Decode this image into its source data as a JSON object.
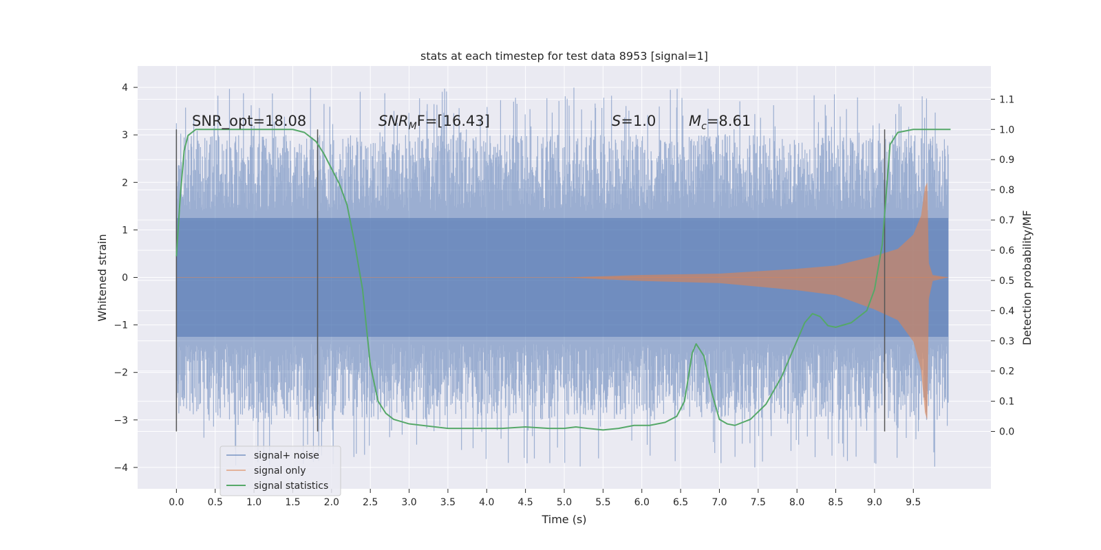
{
  "chart_data": {
    "type": "line",
    "title": "stats at each timestep for test data 8953 [signal=1]",
    "xlabel": "Time (s)",
    "ylabel": "Whitened strain",
    "y2label": "Detection probability/MF",
    "xlim": [
      -0.5,
      10.5
    ],
    "ylim": [
      -4.45,
      4.45
    ],
    "y2lim": [
      -0.19,
      1.21
    ],
    "x_ticks": [
      "0.0",
      "0.5",
      "1.0",
      "1.5",
      "2.0",
      "2.5",
      "3.0",
      "3.5",
      "4.0",
      "4.5",
      "5.0",
      "5.5",
      "6.0",
      "6.5",
      "7.0",
      "7.5",
      "8.0",
      "8.5",
      "9.0",
      "9.5"
    ],
    "y_ticks": [
      "4",
      "3",
      "2",
      "1",
      "0",
      "−1",
      "−2",
      "−3",
      "−4"
    ],
    "y2_ticks": [
      "1.1",
      "1.0",
      "0.9",
      "0.8",
      "0.7",
      "0.6",
      "0.5",
      "0.4",
      "0.3",
      "0.2",
      "0.1",
      "0.0"
    ],
    "grid": true,
    "legend_position": "lower-left",
    "colors": {
      "background": "#eaeaf2",
      "grid": "#ffffff",
      "signal_noise": "#4c72b0",
      "signal_only": "#dd8452",
      "statistics": "#55a868",
      "vlines": "#555555"
    },
    "annotations": {
      "snr_opt": "SNR_opt=18.08",
      "snr_mf_sym": "SNR",
      "snr_mf_sub": "M",
      "snr_mf_rest": "F=[16.43]",
      "s_sym": "S",
      "s_rest": "=1.0",
      "mc_sym": "M",
      "mc_sub": "c",
      "mc_rest": "=8.61"
    },
    "vertical_lines_x": [
      0.0,
      1.82,
      9.13
    ],
    "series": [
      {
        "name": "signal+ noise",
        "noise_band": [
          -1.25,
          1.25
        ],
        "peak_envelope": [
          -4.0,
          4.0
        ],
        "x_range": [
          0.0,
          9.95
        ]
      },
      {
        "name": "signal only",
        "envelope": [
          [
            5.0,
            0.0
          ],
          [
            6.0,
            0.05
          ],
          [
            7.0,
            0.08
          ],
          [
            8.0,
            0.18
          ],
          [
            8.5,
            0.25
          ],
          [
            9.0,
            0.45
          ],
          [
            9.3,
            0.6
          ],
          [
            9.5,
            0.9
          ],
          [
            9.6,
            1.3
          ],
          [
            9.65,
            1.9
          ],
          [
            9.68,
            2.0
          ],
          [
            9.7,
            0.3
          ],
          [
            9.75,
            0.05
          ],
          [
            9.95,
            0.0
          ]
        ]
      },
      {
        "name": "signal statistics",
        "x": [
          0.0,
          0.05,
          0.1,
          0.15,
          0.25,
          0.4,
          0.7,
          1.0,
          1.3,
          1.5,
          1.65,
          1.8,
          1.9,
          2.0,
          2.1,
          2.2,
          2.3,
          2.4,
          2.5,
          2.6,
          2.7,
          2.8,
          3.0,
          3.5,
          4.0,
          4.2,
          4.5,
          4.8,
          5.0,
          5.15,
          5.3,
          5.5,
          5.7,
          5.9,
          6.1,
          6.3,
          6.45,
          6.55,
          6.65,
          6.7,
          6.8,
          6.9,
          7.0,
          7.1,
          7.2,
          7.4,
          7.6,
          7.8,
          8.0,
          8.1,
          8.2,
          8.3,
          8.4,
          8.5,
          8.7,
          8.9,
          9.0,
          9.1,
          9.2,
          9.3,
          9.5,
          9.7,
          9.98
        ],
        "values": [
          0.58,
          0.78,
          0.93,
          0.98,
          1.0,
          1.0,
          1.0,
          1.0,
          1.0,
          1.0,
          0.99,
          0.96,
          0.92,
          0.87,
          0.82,
          0.75,
          0.62,
          0.47,
          0.22,
          0.1,
          0.06,
          0.04,
          0.025,
          0.01,
          0.01,
          0.01,
          0.015,
          0.01,
          0.01,
          0.015,
          0.01,
          0.005,
          0.01,
          0.02,
          0.02,
          0.03,
          0.05,
          0.1,
          0.26,
          0.29,
          0.25,
          0.13,
          0.04,
          0.025,
          0.02,
          0.04,
          0.09,
          0.18,
          0.3,
          0.36,
          0.39,
          0.38,
          0.35,
          0.345,
          0.36,
          0.4,
          0.47,
          0.62,
          0.95,
          0.99,
          1.0,
          1.0,
          1.0
        ]
      }
    ]
  }
}
